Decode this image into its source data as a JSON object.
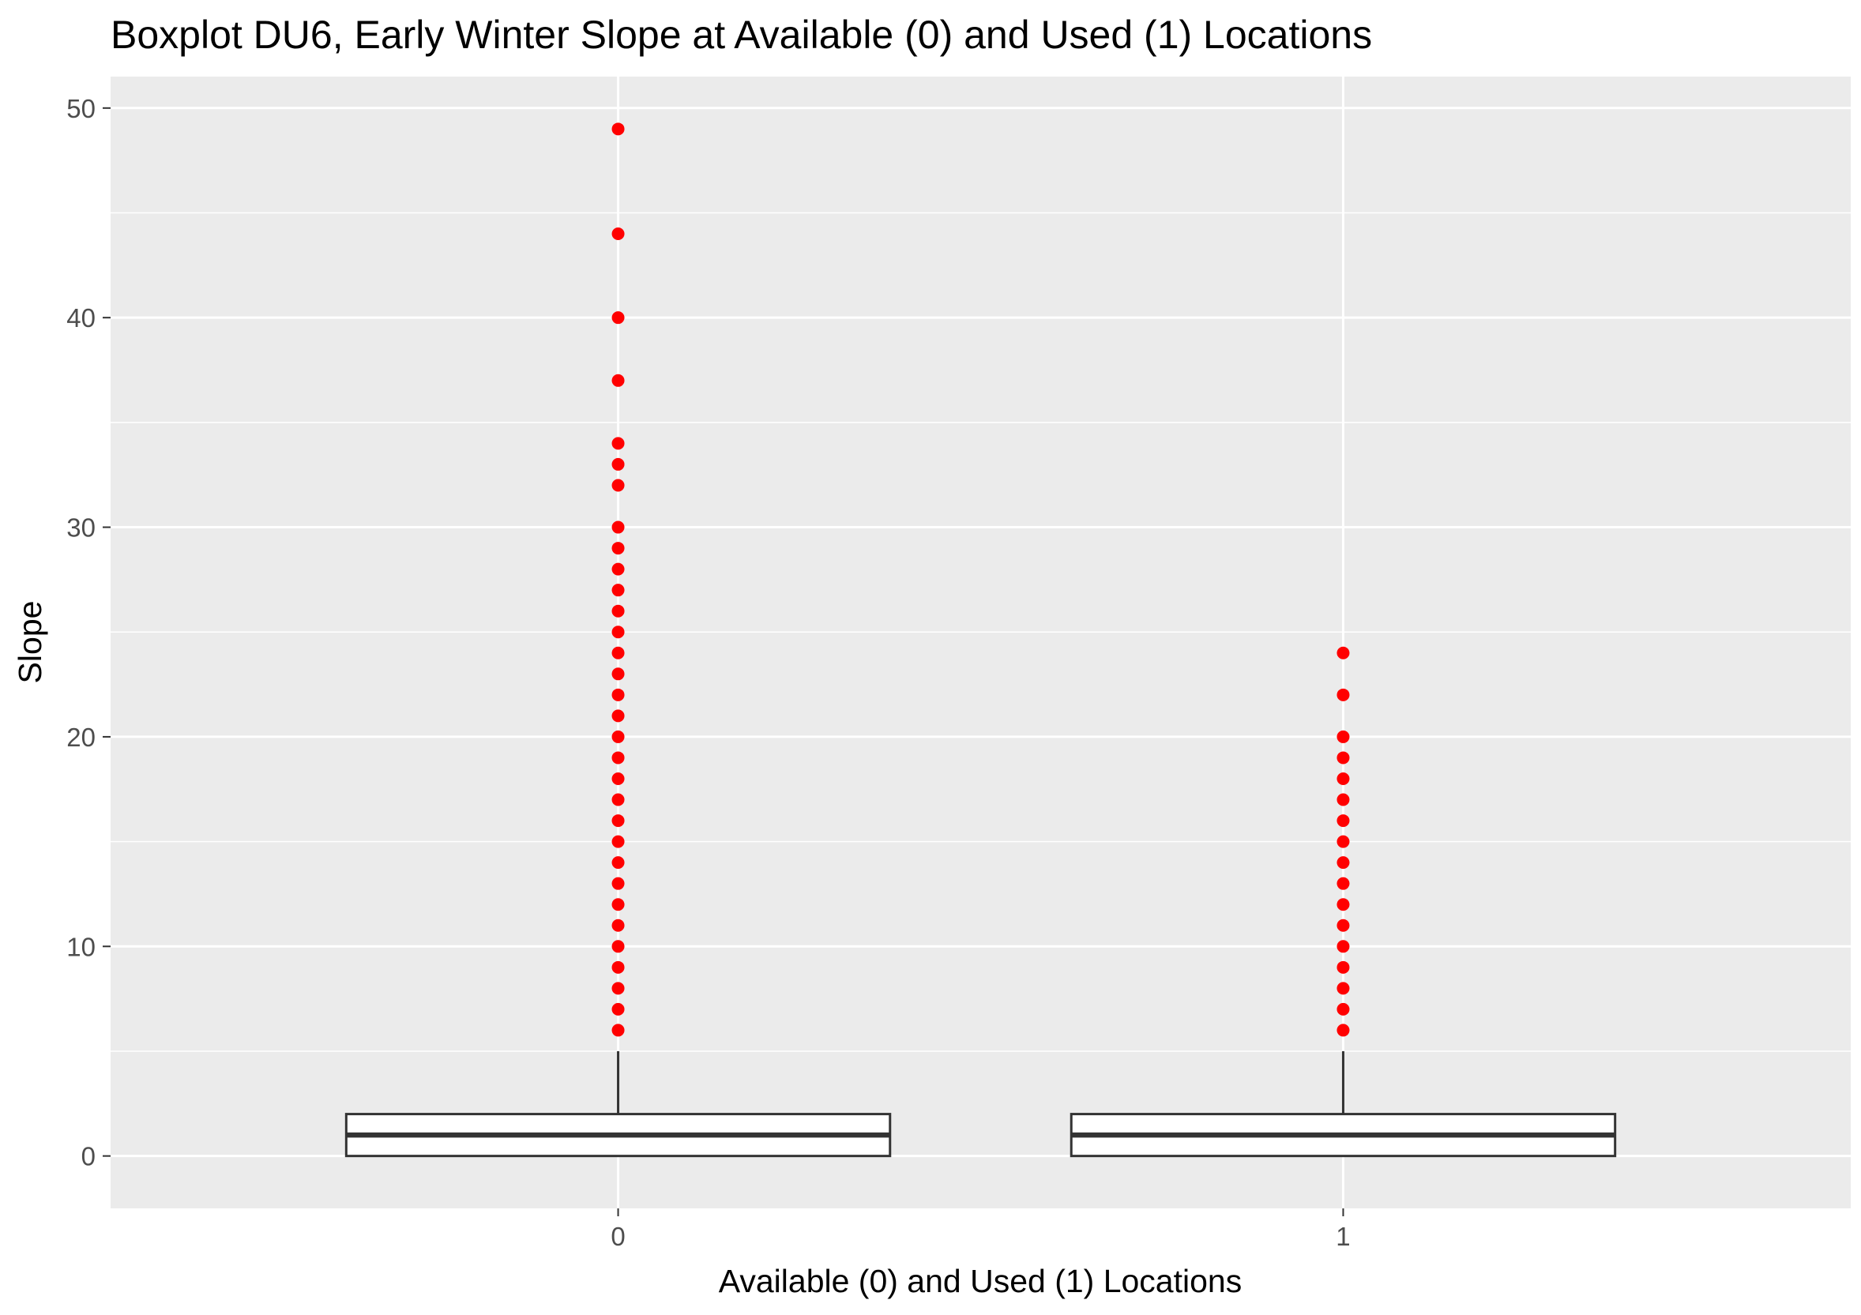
{
  "chart_data": {
    "type": "boxplot",
    "title": "Boxplot DU6, Early Winter Slope at Available (0) and Used (1) Locations",
    "xlabel": "Available (0) and Used (1) Locations",
    "ylabel": "Slope",
    "categories": [
      "0",
      "1"
    ],
    "ylim": [
      -2.5,
      51.5
    ],
    "yticks": [
      0,
      10,
      20,
      30,
      40,
      50
    ],
    "grid": true,
    "legend": "none",
    "colors": {
      "panel_background": "#ebebeb",
      "grid": "#ffffff",
      "box_fill": "#ffffff",
      "box_line": "#333333",
      "outlier": "#ff0000"
    },
    "boxes": [
      {
        "category": "0",
        "whisker_low": 0,
        "q1": 0,
        "median": 1,
        "q3": 2,
        "whisker_high": 5,
        "outliers": [
          6,
          7,
          8,
          9,
          10,
          11,
          12,
          13,
          14,
          15,
          16,
          17,
          18,
          19,
          20,
          21,
          22,
          23,
          24,
          25,
          26,
          27,
          28,
          29,
          30,
          32,
          33,
          34,
          37,
          40,
          44,
          49
        ]
      },
      {
        "category": "1",
        "whisker_low": 0,
        "q1": 0,
        "median": 1,
        "q3": 2,
        "whisker_high": 5,
        "outliers": [
          6,
          7,
          8,
          9,
          10,
          11,
          12,
          13,
          14,
          15,
          16,
          17,
          18,
          19,
          20,
          22,
          24
        ]
      }
    ]
  }
}
